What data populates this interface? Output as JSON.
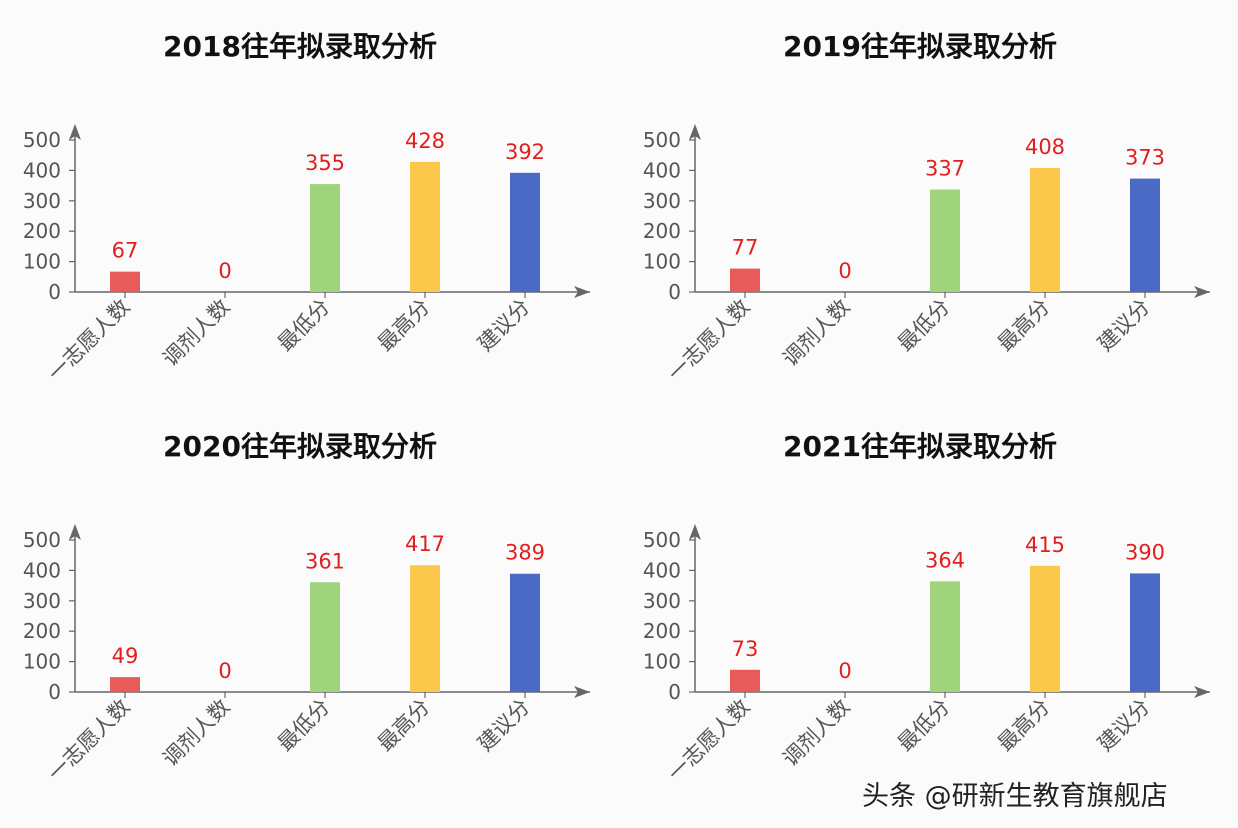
{
  "chart_data": [
    {
      "type": "bar",
      "title": "2018往年拟录取分析",
      "categories": [
        "一志愿人数",
        "调剂人数",
        "最低分",
        "最高分",
        "建议分"
      ],
      "values": [
        67,
        0,
        355,
        428,
        392
      ],
      "ylim": [
        0,
        500
      ],
      "yticks": [
        0,
        100,
        200,
        300,
        400,
        500
      ],
      "grid": false,
      "colors": [
        "#e85b5b",
        "#e85b5b",
        "#9fd47c",
        "#fbc84c",
        "#4a6ac6"
      ],
      "label_color": "#e02020"
    },
    {
      "type": "bar",
      "title": "2019往年拟录取分析",
      "categories": [
        "一志愿人数",
        "调剂人数",
        "最低分",
        "最高分",
        "建议分"
      ],
      "values": [
        77,
        0,
        337,
        408,
        373
      ],
      "ylim": [
        0,
        500
      ],
      "yticks": [
        0,
        100,
        200,
        300,
        400,
        500
      ],
      "grid": false,
      "colors": [
        "#e85b5b",
        "#e85b5b",
        "#9fd47c",
        "#fbc84c",
        "#4a6ac6"
      ],
      "label_color": "#e02020"
    },
    {
      "type": "bar",
      "title": "2020往年拟录取分析",
      "categories": [
        "一志愿人数",
        "调剂人数",
        "最低分",
        "最高分",
        "建议分"
      ],
      "values": [
        49,
        0,
        361,
        417,
        389
      ],
      "ylim": [
        0,
        500
      ],
      "yticks": [
        0,
        100,
        200,
        300,
        400,
        500
      ],
      "grid": false,
      "colors": [
        "#e85b5b",
        "#e85b5b",
        "#9fd47c",
        "#fbc84c",
        "#4a6ac6"
      ],
      "label_color": "#e02020"
    },
    {
      "type": "bar",
      "title": "2021往年拟录取分析",
      "categories": [
        "一志愿人数",
        "调剂人数",
        "最低分",
        "最高分",
        "建议分"
      ],
      "values": [
        73,
        0,
        364,
        415,
        390
      ],
      "ylim": [
        0,
        500
      ],
      "yticks": [
        0,
        100,
        200,
        300,
        400,
        500
      ],
      "grid": false,
      "colors": [
        "#e85b5b",
        "#e85b5b",
        "#9fd47c",
        "#fbc84c",
        "#4a6ac6"
      ],
      "label_color": "#e02020"
    }
  ],
  "watermark": "头条 @研新生教育旗舰店"
}
